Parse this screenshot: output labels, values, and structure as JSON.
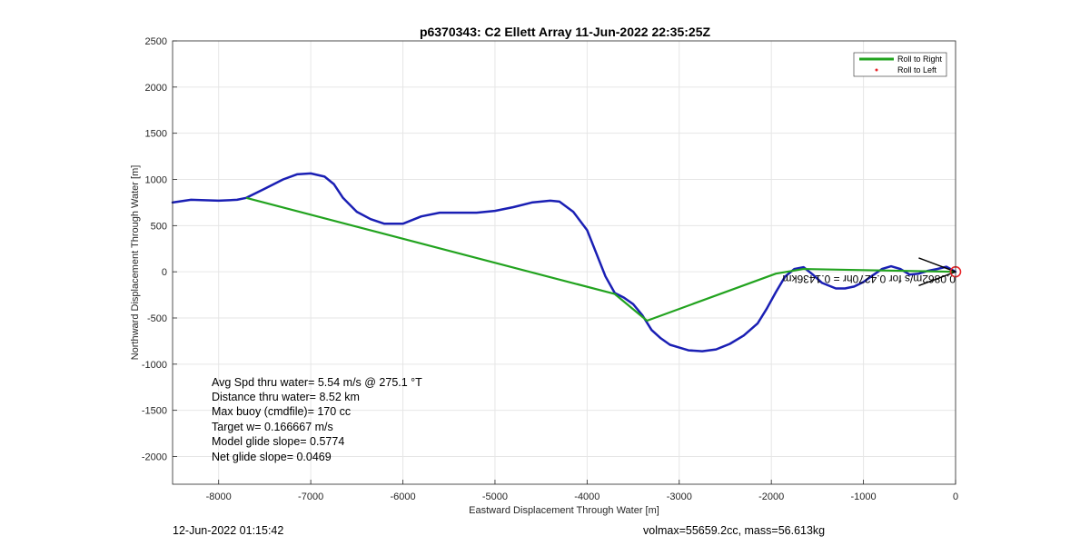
{
  "chart_data": {
    "type": "line",
    "title": "p6370343: C2 Ellett Array 11-Jun-2022 22:35:25Z",
    "xlabel": "Eastward Displacement Through Water [m]",
    "ylabel": "Northward Displacement Through Water [m]",
    "xlim": [
      -8500,
      0
    ],
    "ylim": [
      -2300,
      2500
    ],
    "xticks": [
      -8000,
      -7000,
      -6000,
      -5000,
      -4000,
      -3000,
      -2000,
      -1000,
      0
    ],
    "yticks": [
      -2000,
      -1500,
      -1000,
      -500,
      0,
      500,
      1000,
      1500,
      2000,
      2500
    ],
    "grid": true,
    "legend_position": "top-right",
    "legend": [
      {
        "label": "Roll to Right",
        "color": "#22a31f",
        "style": "line"
      },
      {
        "label": "Roll to Left",
        "color": "#e8262a",
        "style": "dot"
      }
    ],
    "series": [
      {
        "color": "#1a1fb4",
        "x": [
          -8500,
          -8300,
          -8000,
          -7800,
          -7700,
          -7500,
          -7300,
          -7150,
          -7000,
          -6850,
          -6750,
          -6650,
          -6500,
          -6350,
          -6200,
          -6000,
          -5800,
          -5600,
          -5400,
          -5200,
          -5000,
          -4800,
          -4600,
          -4400,
          -4300,
          -4150,
          -4000,
          -3900,
          -3800,
          -3700,
          -3600,
          -3500,
          -3400,
          -3300,
          -3200,
          -3100,
          -2900,
          -2750,
          -2600,
          -2450,
          -2300,
          -2150,
          -2050,
          -1950,
          -1850,
          -1750,
          -1650,
          -1550,
          -1450,
          -1300,
          -1200,
          -1100,
          -1000,
          -900,
          -800,
          -700,
          -600,
          -500,
          -400,
          -300,
          -200,
          -100,
          0
        ],
        "y": [
          750,
          780,
          770,
          780,
          800,
          900,
          1000,
          1055,
          1065,
          1030,
          950,
          800,
          650,
          570,
          520,
          520,
          600,
          640,
          640,
          640,
          660,
          700,
          750,
          770,
          760,
          650,
          450,
          200,
          -50,
          -230,
          -280,
          -350,
          -470,
          -630,
          -720,
          -790,
          -850,
          -860,
          -840,
          -780,
          -690,
          -560,
          -400,
          -220,
          -50,
          30,
          50,
          -30,
          -120,
          -180,
          -180,
          -160,
          -110,
          -40,
          30,
          60,
          30,
          -30,
          -20,
          10,
          30,
          55,
          0
        ]
      },
      {
        "color": "#22a31f",
        "x": [
          -7700,
          -3700,
          -3350,
          -1950,
          -1650,
          0
        ],
        "y": [
          800,
          -240,
          -530,
          -20,
          30,
          0
        ]
      }
    ],
    "markers": [
      {
        "type": "circle",
        "x": 0,
        "y": 0,
        "color": "#e8262a"
      }
    ],
    "arrows": [
      {
        "from": {
          "x": -400,
          "y": -150
        },
        "to": {
          "x": 0,
          "y": 0
        }
      },
      {
        "from": {
          "x": -400,
          "y": 150
        },
        "to": {
          "x": 0,
          "y": 0
        }
      }
    ],
    "overlap_label": "0.0862m/s for 0.4270hr = 0.1436km"
  },
  "stats": [
    "Avg Spd thru water=  5.54 m/s @ 275.1 °T",
    "Distance thru water=  8.52 km",
    "Max buoy (cmdfile)= 170 cc",
    "Target w= 0.166667 m/s",
    "Model glide slope= 0.5774",
    "Net glide slope= 0.0469"
  ],
  "footer": {
    "left": "12-Jun-2022 01:15:42",
    "right": "volmax=55659.2cc, mass=56.613kg"
  }
}
